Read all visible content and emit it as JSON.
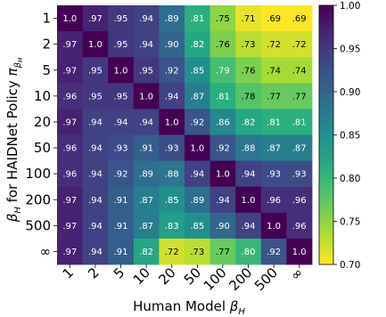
{
  "chart_data": {
    "type": "heatmap",
    "xlabel": "Human Model β_H",
    "ylabel": "β_H for HAIDNet Policy π_{β_H}",
    "x_categories": [
      "1",
      "2",
      "5",
      "10",
      "20",
      "50",
      "100",
      "200",
      "500",
      "∞"
    ],
    "y_categories": [
      "1",
      "2",
      "5",
      "10",
      "20",
      "50",
      "100",
      "200",
      "500",
      "∞"
    ],
    "values": [
      [
        1.0,
        0.97,
        0.95,
        0.94,
        0.89,
        0.81,
        0.75,
        0.71,
        0.69,
        0.69
      ],
      [
        0.97,
        1.0,
        0.95,
        0.94,
        0.9,
        0.82,
        0.76,
        0.73,
        0.72,
        0.72
      ],
      [
        0.97,
        0.95,
        1.0,
        0.95,
        0.92,
        0.85,
        0.79,
        0.76,
        0.74,
        0.74
      ],
      [
        0.96,
        0.95,
        0.95,
        1.0,
        0.94,
        0.87,
        0.81,
        0.78,
        0.77,
        0.77
      ],
      [
        0.97,
        0.94,
        0.94,
        0.94,
        1.0,
        0.92,
        0.86,
        0.82,
        0.81,
        0.81
      ],
      [
        0.96,
        0.94,
        0.93,
        0.91,
        0.93,
        1.0,
        0.92,
        0.88,
        0.87,
        0.87
      ],
      [
        0.96,
        0.94,
        0.92,
        0.89,
        0.88,
        0.94,
        1.0,
        0.94,
        0.93,
        0.93
      ],
      [
        0.97,
        0.94,
        0.91,
        0.87,
        0.85,
        0.89,
        0.94,
        1.0,
        0.96,
        0.96
      ],
      [
        0.97,
        0.94,
        0.91,
        0.87,
        0.83,
        0.85,
        0.9,
        0.94,
        1.0,
        0.96
      ],
      [
        0.97,
        0.94,
        0.91,
        0.82,
        0.72,
        0.73,
        0.77,
        0.8,
        0.92,
        1.0
      ]
    ],
    "cell_labels": [
      [
        "1.0",
        ".97",
        ".95",
        ".94",
        ".89",
        ".81",
        ".75",
        ".71",
        ".69",
        ".69"
      ],
      [
        ".97",
        "1.0",
        ".95",
        ".94",
        ".90",
        ".82",
        ".76",
        ".73",
        ".72",
        ".72"
      ],
      [
        ".97",
        ".95",
        "1.0",
        ".95",
        ".92",
        ".85",
        ".79",
        ".76",
        ".74",
        ".74"
      ],
      [
        ".96",
        ".95",
        ".95",
        "1.0",
        ".94",
        ".87",
        ".81",
        ".78",
        ".77",
        ".77"
      ],
      [
        ".97",
        ".94",
        ".94",
        ".94",
        "1.0",
        ".92",
        ".86",
        ".82",
        ".81",
        ".81"
      ],
      [
        ".96",
        ".94",
        ".93",
        ".91",
        ".93",
        "1.0",
        ".92",
        ".88",
        ".87",
        ".87"
      ],
      [
        ".96",
        ".94",
        ".92",
        ".89",
        ".88",
        ".94",
        "1.0",
        ".94",
        ".93",
        ".93"
      ],
      [
        ".97",
        ".94",
        ".91",
        ".87",
        ".85",
        ".89",
        ".94",
        "1.0",
        ".96",
        ".96"
      ],
      [
        ".97",
        ".94",
        ".91",
        ".87",
        ".83",
        ".85",
        ".90",
        ".94",
        "1.0",
        ".96"
      ],
      [
        ".97",
        ".94",
        ".91",
        ".82",
        ".72",
        ".73",
        ".77",
        ".80",
        ".92",
        "1.0"
      ]
    ],
    "colorbar": {
      "min": 0.7,
      "max": 1.0,
      "ticks": [
        1.0,
        0.95,
        0.9,
        0.85,
        0.8,
        0.75,
        0.7
      ],
      "tick_labels": [
        "1.00",
        "0.95",
        "0.90",
        "0.85",
        "0.80",
        "0.75",
        "0.70"
      ],
      "colormap": "viridis_r"
    }
  }
}
